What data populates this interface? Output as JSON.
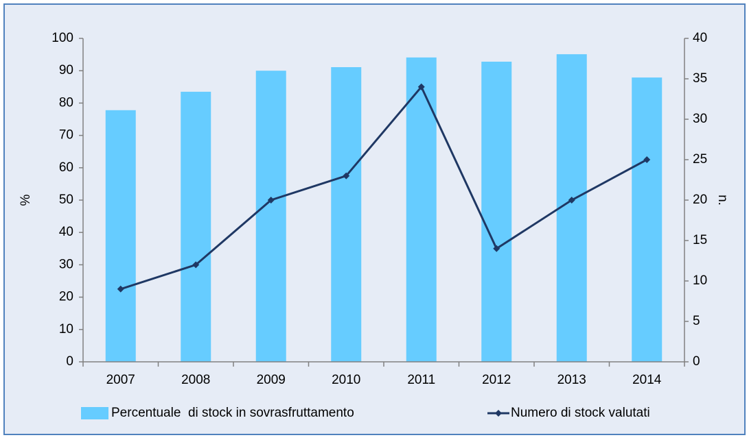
{
  "chart_data": {
    "type": "bar",
    "categories": [
      "2007",
      "2008",
      "2009",
      "2010",
      "2011",
      "2012",
      "2013",
      "2014"
    ],
    "series": [
      {
        "name": "Percentuale  di stock in sovrasfruttamento",
        "type": "bar",
        "color": "#66ccff",
        "values": [
          77.8,
          83.5,
          90,
          91.1,
          94.1,
          92.8,
          95.1,
          87.9
        ]
      },
      {
        "name": "Numero di stock valutati",
        "type": "line",
        "axis": "y2",
        "color": "#1f3864",
        "values": [
          9,
          12,
          20,
          23,
          34,
          14,
          20,
          25
        ]
      }
    ],
    "ylabel": "%",
    "y2label": "n.",
    "ylim": [
      0,
      100
    ],
    "yticks": [
      0,
      10,
      20,
      30,
      40,
      50,
      60,
      70,
      80,
      90,
      100
    ],
    "y2lim": [
      0,
      40
    ],
    "y2ticks": [
      0,
      5,
      10,
      15,
      20,
      25,
      30,
      35,
      40
    ],
    "legend": "bottom"
  }
}
